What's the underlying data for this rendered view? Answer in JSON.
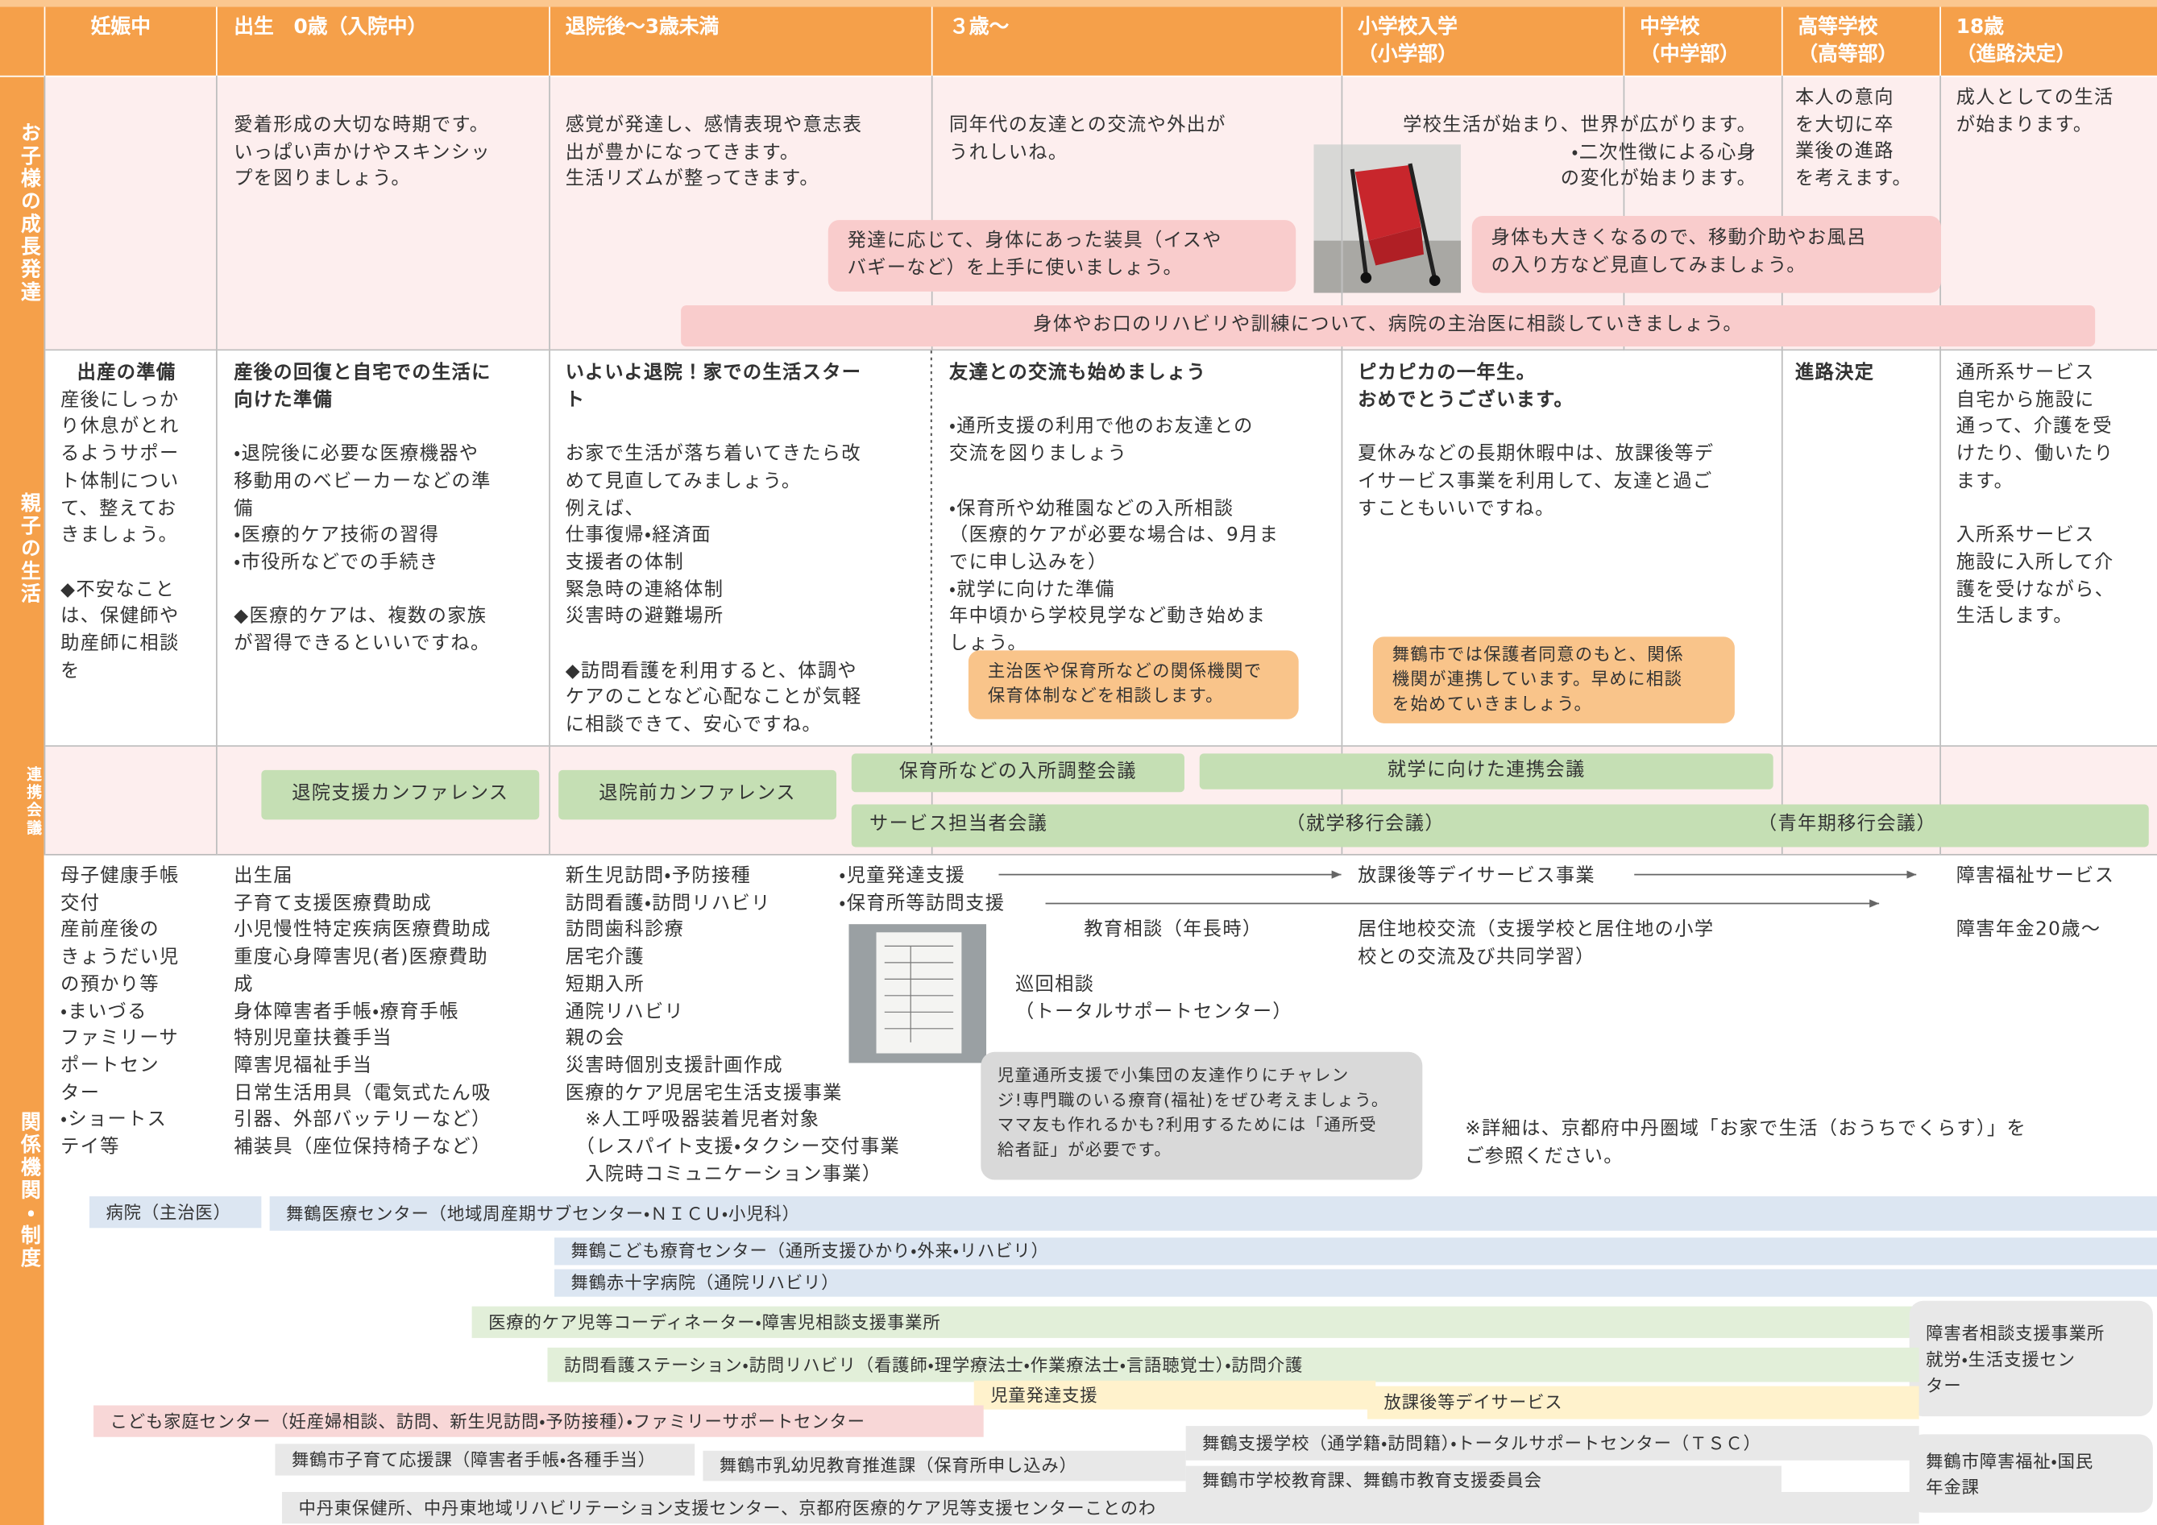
{
  "header": {
    "pregnancy": "妊娠中",
    "birth": "出生　0歳（入院中）",
    "after_discharge": "退院後～3歳未満",
    "age3": "３歳～",
    "elementary": "小学校入学\n（小学部）",
    "junior_high": "中学校\n（中学部）",
    "high_school": "高等学校\n（高等部）",
    "age18": "18歳\n（進路決定）"
  },
  "growth": {
    "label": "お子様の成長発達",
    "birth": "愛着形成の大切な時期です。\nいっぱい声かけやスキンシッ\nプを図りましょう。",
    "after_discharge": "感覚が発達し、感情表現や意志表\n出が豊かになってきます。\n生活リズムが整ってきます。",
    "age3": "同年代の友達との交流や外出が\nうれしいね。",
    "elementary": "学校生活が始まり、世界が広がります。\n・二次性徴による心身\n　の変化が始まります。",
    "high_school": "本人の意向\nを大切に卒\n業後の進路\nを考えます。",
    "age18": "成人としての生活\nが始まります。",
    "note_equipment": "発達に応じて、身体にあった装具（イスや\nバギーなど）を上手に使いましょう。",
    "note_body": "身体も大きくなるので、移動介助やお風呂\nの入り方など見直してみましょう。",
    "note_rehab": "身体やお口のリハビリや訓練について、病院の主治医に相談していきましょう。"
  },
  "life": {
    "label": "親子の生活",
    "pregnancy": {
      "title": "出産の準備",
      "text": "産後にしっか\nり休息がとれ\nるようサポー\nト体制につい\nて、整えてお\nきましょう。\n\n◆不安なこと\nは、保健師や\n助産師に相談\nを"
    },
    "birth": {
      "title": "産後の回復と自宅での生活に\n向けた準備",
      "text": "・退院後に必要な医療機器や\n移動用のベビーカーなどの準\n備\n・医療的ケア技術の習得\n・市役所などでの手続き\n\n◆医療的ケアは、複数の家族\nが習得できるといいですね。"
    },
    "after_discharge": {
      "title": "いよいよ退院！家での生活スター\nト",
      "text": "お家で生活が落ち着いてきたら改\nめて見直してみましょう。\n例えば、\n仕事復帰・経済面\n支援者の体制\n緊急時の連絡体制\n災害時の避難場所\n\n◆訪問看護を利用すると、体調や\nケアのことなど心配なことが気軽\nに相談できて、安心ですね。"
    },
    "age3": {
      "title": "友達との交流も始めましょう",
      "text": "・通所支援の利用で他のお友達との\n交流を図りましょう\n\n・保育所や幼稚園などの入所相談\n（医療的ケアが必要な場合は、9月ま\nでに申し込みを）\n・就学に向けた準備\n年中頃から学校見学など動き始めま\nしょう。"
    },
    "elementary": {
      "title": "ピカピカの一年生。\nおめでとうございます。",
      "text": "夏休みなどの長期休暇中は、放課後等デ\nイサービス事業を利用して、友達と過ご\nすこともいいですね。"
    },
    "high_school": {
      "title": "進路決定"
    },
    "age18": {
      "text": "通所系サービス\n自宅から施設に\n通って、介護を受\nけたり、働いたり\nます。\n\n入所系サービス\n施設に入所して介\n護を受けながら、\n生活します。"
    },
    "note_nursery": "主治医や保育所などの関係機関で\n保育体制などを相談します。",
    "note_city": "舞鶴市では保護者同意のもと、関係\n機関が連携しています。早めに相談\nを始めていきましょう。"
  },
  "conference": {
    "label": "連携会議",
    "discharge_support": "退院支援カンファレンス",
    "pre_discharge": "退院前カンファレンス",
    "nursery_adjust": "保育所などの入所調整会議",
    "school_entry": "就学に向けた連携会議",
    "service_bar": [
      "サービス担当者会議",
      "（就学移行会議）",
      "（青年期移行会議）"
    ]
  },
  "institutions": {
    "label": "関係機関・制度",
    "pregnancy": "母子健康手帳\n交付\n産前産後の\nきょうだい児\nの預かり等\n・まいづる\nファミリーサ\nポートセン\nター\n・ショートス\nテイ等",
    "birth": "出生届\n子育て支援医療費助成\n小児慢性特定疾病医療費助成\n重度心身障害児(者)医療費助\n成\n身体障害者手帳・療育手帳\n特別児童扶養手当\n障害児福祉手当\n日常生活用具（電気式たん吸\n引器、外部バッテリーなど）\n補装具（座位保持椅子など）",
    "after_discharge": "新生児訪問・予防接種\n訪問看護・訪問リハビリ\n訪問歯科診療\n居宅介護\n短期入所\n通院リハビリ\n親の会\n災害時個別支援計画作成\n医療的ケア児居宅生活支援事業\n　※人工呼吸器装着児者対象\n　（レスパイト支援・タクシー交付事業\n　入院時コミュニケーション事業）",
    "child_dev": "・児童発達支援",
    "nursery_visit": "・保育所等訪問支援",
    "edu_consult": "教育相談（年長時）",
    "tour_consult": "巡回相談\n（トータルサポートセンター）",
    "after_school": "放課後等デイサービス事業",
    "exchange": "居住地校交流（支援学校と居住地の小学\n校との交流及び共同学習）",
    "welfare": "障害福祉サービス",
    "pension": "障害年金20歳～",
    "note_bubble": "児童通所支援で小集団の友達作りにチャレン\nジ!専門職のいる療育(福祉)をぜひ考えましょう。\nママ友も作れるかも?利用するためには「通所受\n給者証」が必要です。",
    "note_detail": "※詳細は、京都府中丹圏域「お家で生活（おうちでくらす）」を\nご参照ください。",
    "bars": [
      "病院（主治医）",
      "舞鶴医療センター（地域周産期サブセンター・ＮＩＣＵ・小児科）",
      "舞鶴こども療育センター（通所支援ひかり・外来・リハビリ）",
      "舞鶴赤十字病院（通院リハビリ）",
      "医療的ケア児等コーディネーター・障害児相談支援事業所",
      "障害者相談支援事業所\n就労・生活支援セン\nター",
      "訪問看護ステーション・訪問リハビリ（看護師・理学療法士・作業療法士・言語聴覚士）・訪問介護",
      "児童発達支援",
      "放課後等デイサービス",
      "こども家庭センター（妊産婦相談、訪問、新生児訪問・予防接種）・ファミリーサポートセンター",
      "舞鶴市子育て応援課（障害者手帳・各種手当）",
      "舞鶴市乳幼児教育推進課（保育所申し込み）",
      "舞鶴支援学校（通学籍・訪問籍）・トータルサポートセンター（ＴＳＣ）",
      "舞鶴市学校教育課、舞鶴市教育支援委員会",
      "舞鶴市障害福祉・国民\n年金課",
      "中丹東保健所、中丹東地域リハビリテーション支援センター、京都府医療的ケア児等支援センターことのわ"
    ]
  }
}
